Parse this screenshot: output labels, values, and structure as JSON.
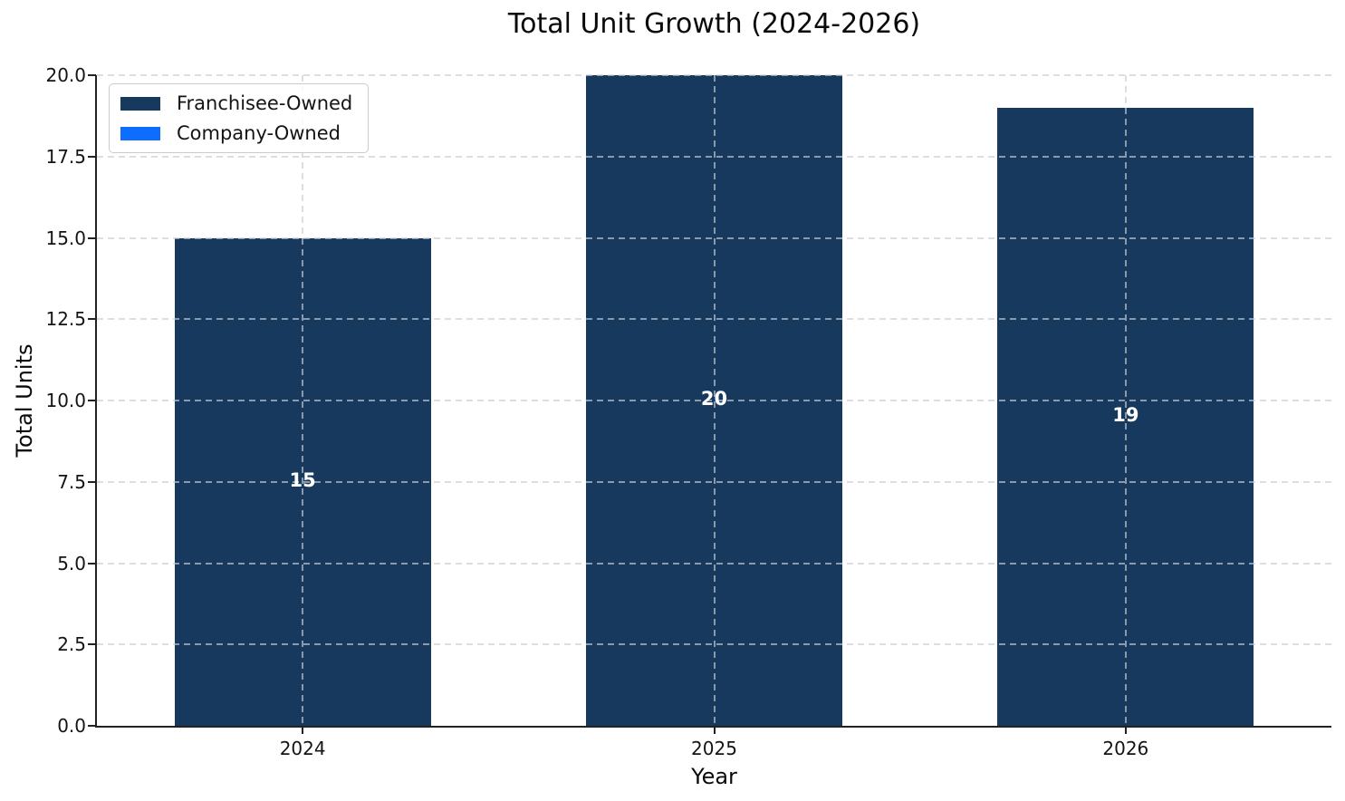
{
  "chart_data": {
    "type": "bar",
    "stacked": true,
    "title": "Total Unit Growth (2024-2026)",
    "xlabel": "Year",
    "ylabel": "Total Units",
    "categories": [
      "2024",
      "2025",
      "2026"
    ],
    "series": [
      {
        "name": "Franchisee-Owned",
        "color": "#17395E",
        "values": [
          15,
          20,
          19
        ]
      },
      {
        "name": "Company-Owned",
        "color": "#0D6EFD",
        "values": [
          0,
          0,
          0
        ]
      }
    ],
    "bar_total_labels": [
      "15",
      "20",
      "19"
    ],
    "totals": [
      15,
      20,
      19
    ],
    "ylim": [
      0,
      20
    ],
    "yticks": [
      0.0,
      2.5,
      5.0,
      7.5,
      10.0,
      12.5,
      15.0,
      17.5,
      20.0
    ],
    "ytick_labels": [
      "0.0",
      "2.5",
      "5.0",
      "7.5",
      "10.0",
      "12.5",
      "15.0",
      "17.5",
      "20.0"
    ],
    "grid": true,
    "grid_style": "dashed",
    "legend_position": "upper-left",
    "colors": {
      "franchisee_owned": "#17395E",
      "company_owned": "#0D6EFD",
      "grid": "#C8CDD4",
      "axis": "#222222",
      "bar_label": "#FFFFFF",
      "background": "#FFFFFF"
    }
  }
}
